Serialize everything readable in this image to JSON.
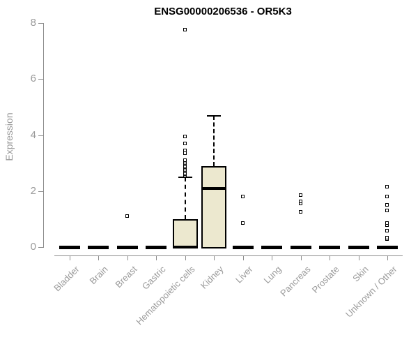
{
  "chart_data": {
    "type": "boxplot",
    "title": "ENSG00000206536 - OR5K3",
    "ylabel": "Expression",
    "xlabel": "",
    "ylim": [
      0,
      8
    ],
    "yticks": [
      0,
      2,
      4,
      6,
      8
    ],
    "grid": false,
    "legend": "none",
    "categories": [
      "Bladder",
      "Brain",
      "Breast",
      "Gastric",
      "Hematopoietic cells",
      "Kidney",
      "Liver",
      "Lung",
      "Pancreas",
      "Prostate",
      "Skin",
      "Unknown / Other"
    ],
    "boxes": [
      {
        "category": "Bladder",
        "q1": 0,
        "median": 0,
        "q3": 0,
        "whisker_low": 0,
        "whisker_high": 0,
        "outliers": []
      },
      {
        "category": "Brain",
        "q1": 0,
        "median": 0,
        "q3": 0,
        "whisker_low": 0,
        "whisker_high": 0,
        "outliers": []
      },
      {
        "category": "Breast",
        "q1": 0,
        "median": 0,
        "q3": 0,
        "whisker_low": 0,
        "whisker_high": 0,
        "outliers": [
          1.1
        ]
      },
      {
        "category": "Gastric",
        "q1": 0,
        "median": 0,
        "q3": 0,
        "whisker_low": 0,
        "whisker_high": 0,
        "outliers": []
      },
      {
        "category": "Hematopoietic cells",
        "q1": 0,
        "median": 0,
        "q3": 1.0,
        "whisker_low": 0,
        "whisker_high": 2.5,
        "outliers": [
          2.55,
          2.6,
          2.65,
          2.7,
          2.75,
          2.8,
          2.85,
          2.9,
          2.95,
          3.0,
          3.05,
          3.1,
          3.35,
          3.45,
          3.7,
          3.95,
          7.75
        ]
      },
      {
        "category": "Kidney",
        "q1": 0,
        "median": 2.1,
        "q3": 2.9,
        "whisker_low": 0,
        "whisker_high": 4.7,
        "outliers": []
      },
      {
        "category": "Liver",
        "q1": 0,
        "median": 0,
        "q3": 0,
        "whisker_low": 0,
        "whisker_high": 0,
        "outliers": [
          0.85,
          1.8
        ]
      },
      {
        "category": "Lung",
        "q1": 0,
        "median": 0,
        "q3": 0,
        "whisker_low": 0,
        "whisker_high": 0,
        "outliers": []
      },
      {
        "category": "Pancreas",
        "q1": 0,
        "median": 0,
        "q3": 0,
        "whisker_low": 0,
        "whisker_high": 0,
        "outliers": [
          1.25,
          1.55,
          1.62,
          1.85
        ]
      },
      {
        "category": "Prostate",
        "q1": 0,
        "median": 0,
        "q3": 0,
        "whisker_low": 0,
        "whisker_high": 0,
        "outliers": []
      },
      {
        "category": "Skin",
        "q1": 0,
        "median": 0,
        "q3": 0,
        "whisker_low": 0,
        "whisker_high": 0,
        "outliers": []
      },
      {
        "category": "Unknown / Other",
        "q1": 0,
        "median": 0,
        "q3": 0,
        "whisker_low": 0,
        "whisker_high": 0,
        "outliers": [
          0.28,
          0.33,
          0.58,
          0.78,
          0.85,
          1.3,
          1.5,
          1.8,
          2.15
        ]
      }
    ],
    "colors": {
      "box_fill": "#ece8cf",
      "box_border": "#000000",
      "axis": "#8c8c8c",
      "tick_labels": "#9a9a9a",
      "title": "#000000"
    }
  }
}
